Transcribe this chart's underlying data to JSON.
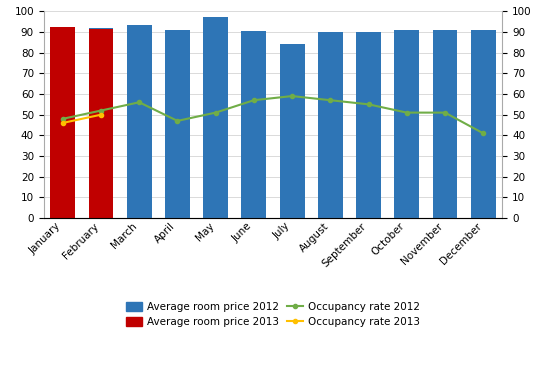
{
  "months": [
    "January",
    "February",
    "March",
    "April",
    "May",
    "June",
    "July",
    "August",
    "September",
    "October",
    "November",
    "December"
  ],
  "bar_2012": [
    91,
    92,
    93.5,
    91,
    97,
    90.5,
    84,
    90,
    90,
    91,
    91,
    91
  ],
  "bar_2013": [
    92.5,
    91.5,
    null,
    null,
    null,
    null,
    null,
    null,
    null,
    null,
    null,
    null
  ],
  "occ_2012": [
    48,
    52,
    56,
    47,
    51,
    57,
    59,
    57,
    55,
    51,
    51,
    41
  ],
  "occ_2013": [
    46,
    50,
    null,
    null,
    null,
    null,
    null,
    null,
    null,
    null,
    null,
    null
  ],
  "bar_color_2012": "#2E75B6",
  "bar_color_2013": "#C00000",
  "line_color_2012": "#70AD47",
  "line_color_2013": "#FFC000",
  "ylim": [
    0,
    100
  ],
  "yticks": [
    0,
    10,
    20,
    30,
    40,
    50,
    60,
    70,
    80,
    90,
    100
  ],
  "legend_labels": [
    "Average room price 2012",
    "Average room price 2013",
    "Occupancy rate 2012",
    "Occupancy rate 2013"
  ],
  "background_color": "#FFFFFF"
}
